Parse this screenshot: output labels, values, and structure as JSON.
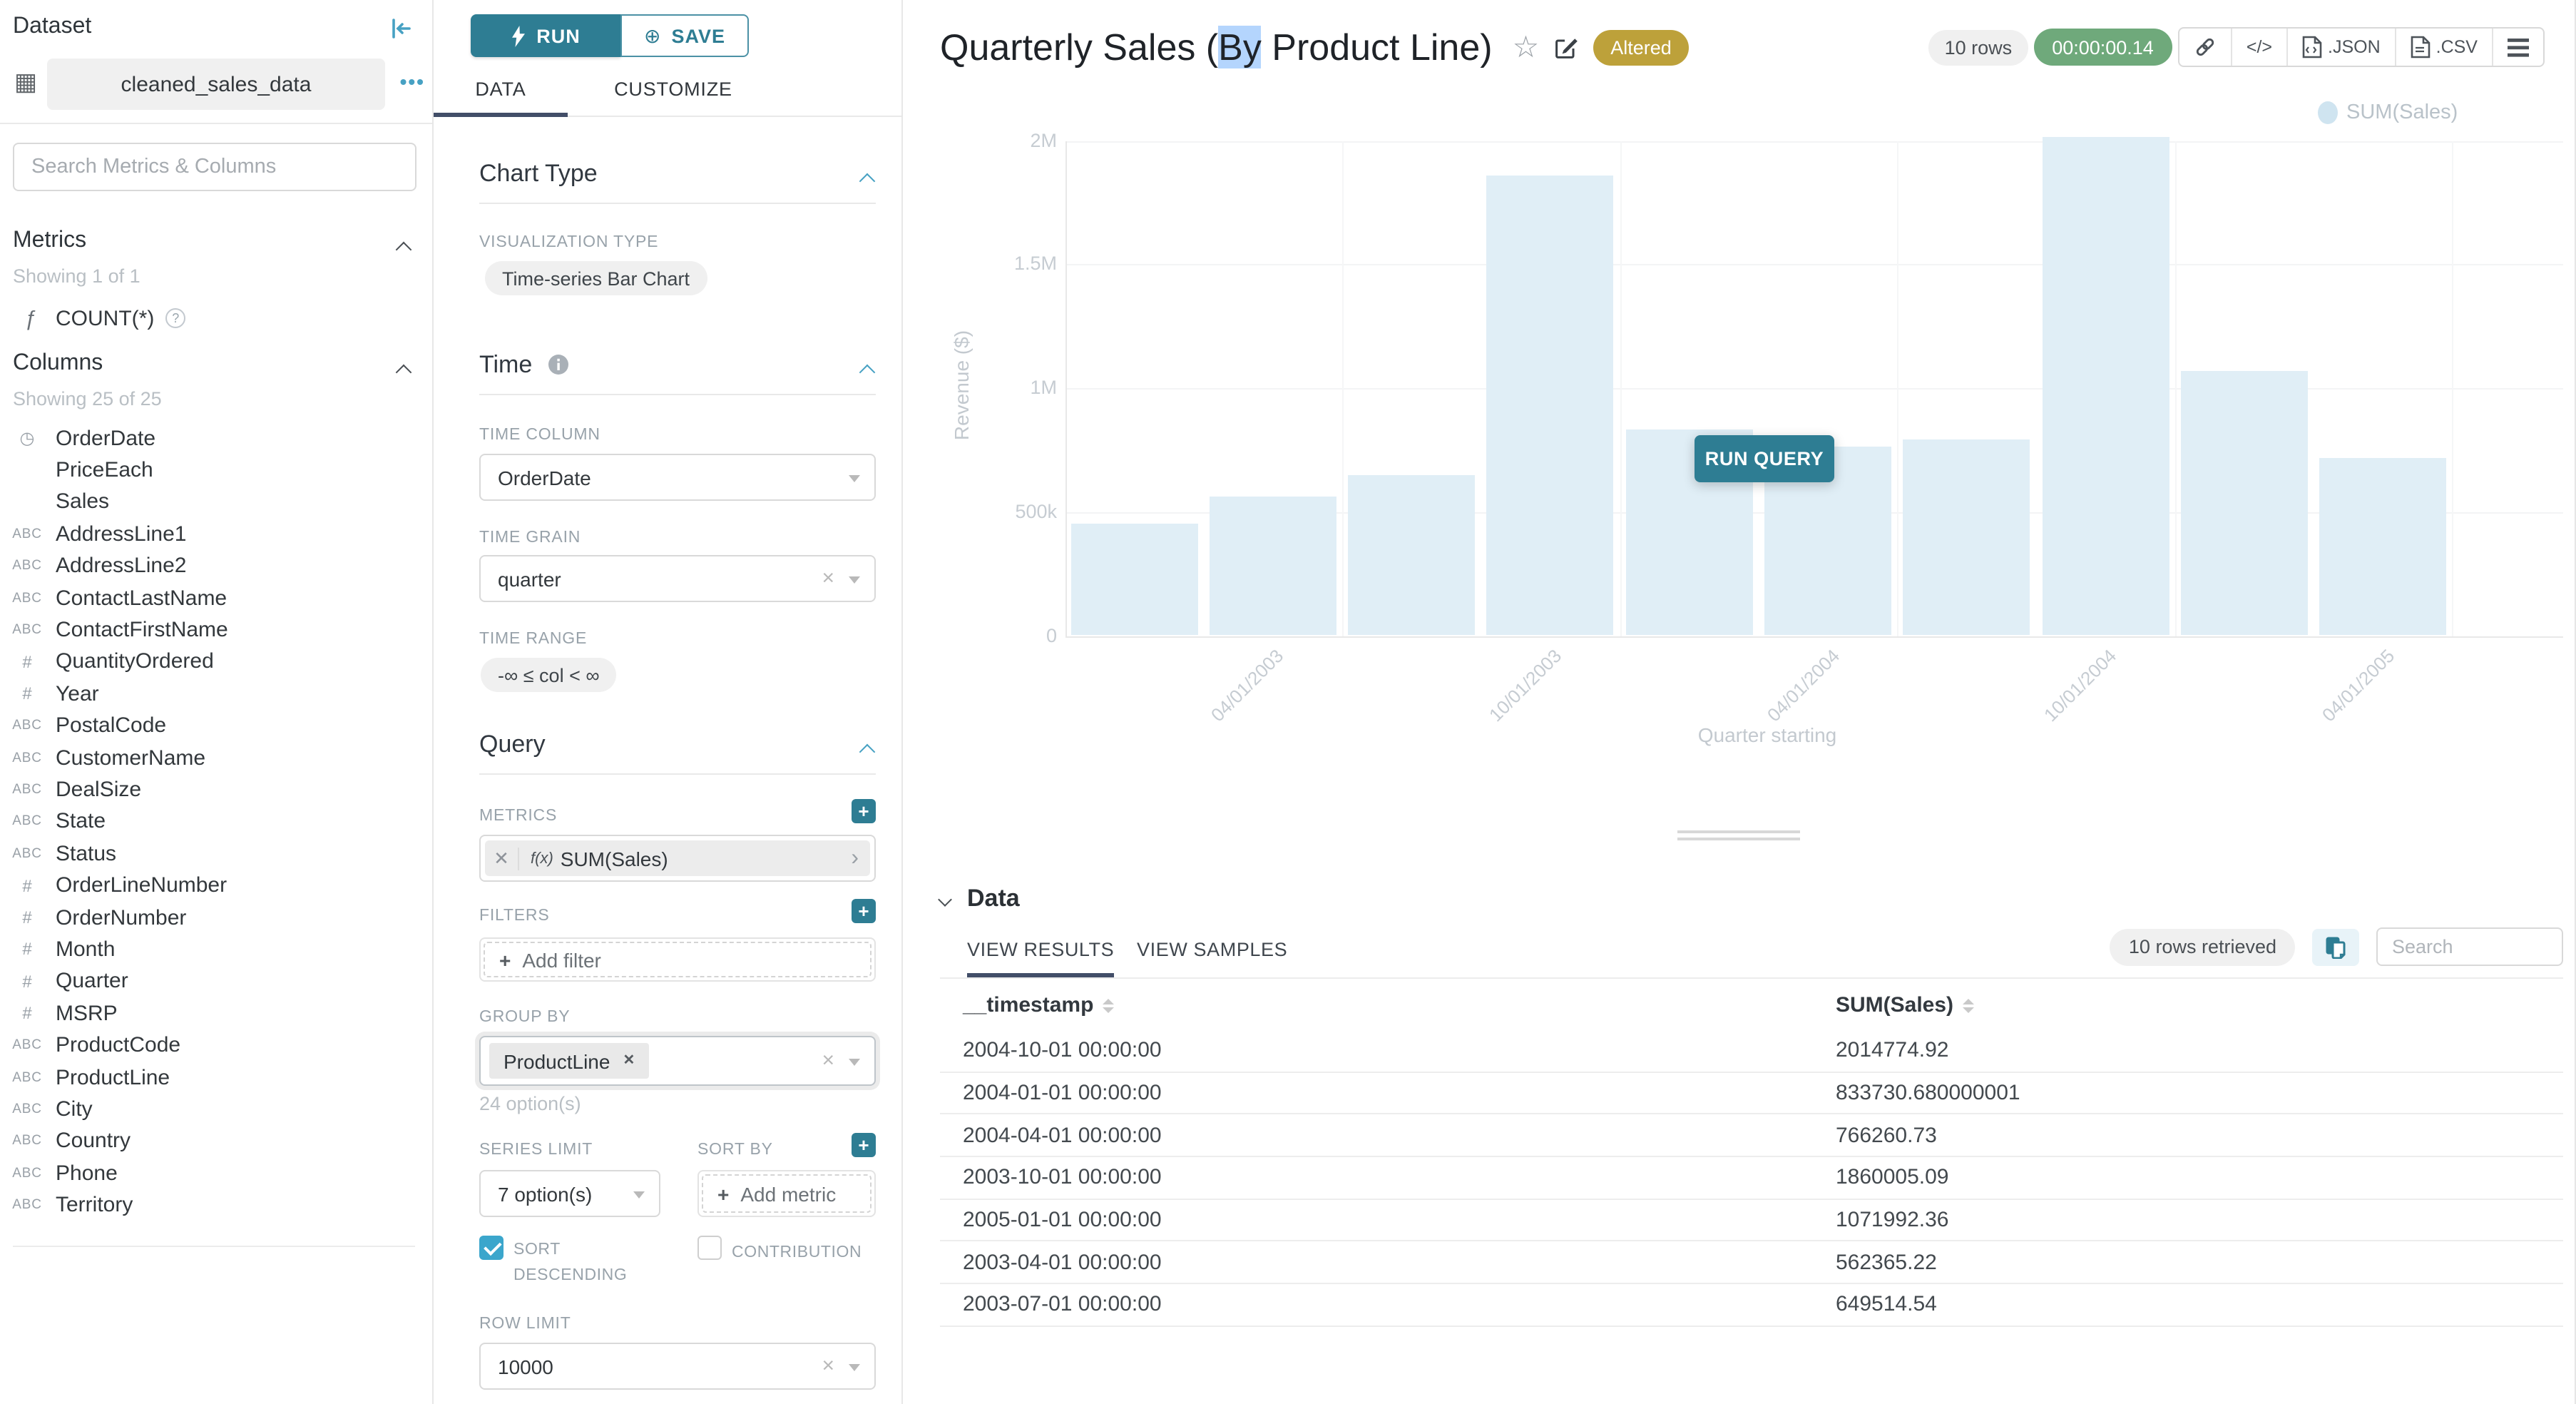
{
  "icons": {
    "plus": "+",
    "menu_dots": "•••",
    "grid": "▦",
    "star": "☆",
    "help": "?",
    "remove": "✕",
    "clear": "×",
    "caret": "›",
    "code": "</>"
  },
  "sidebar": {
    "title": "Dataset",
    "dataset_name": "cleaned_sales_data",
    "search_placeholder": "Search Metrics & Columns",
    "metrics": {
      "header": "Metrics",
      "showing": "Showing 1 of 1",
      "items": [
        {
          "icon": "ƒ",
          "name": "COUNT(*)"
        }
      ]
    },
    "columns": {
      "header": "Columns",
      "showing": "Showing 25 of 25",
      "items": [
        {
          "icon": "◷",
          "name": "OrderDate"
        },
        {
          "icon": "",
          "name": "PriceEach"
        },
        {
          "icon": "",
          "name": "Sales"
        },
        {
          "icon": "ABC",
          "name": "AddressLine1"
        },
        {
          "icon": "ABC",
          "name": "AddressLine2"
        },
        {
          "icon": "ABC",
          "name": "ContactLastName"
        },
        {
          "icon": "ABC",
          "name": "ContactFirstName"
        },
        {
          "icon": "#",
          "name": "QuantityOrdered"
        },
        {
          "icon": "#",
          "name": "Year"
        },
        {
          "icon": "ABC",
          "name": "PostalCode"
        },
        {
          "icon": "ABC",
          "name": "CustomerName"
        },
        {
          "icon": "ABC",
          "name": "DealSize"
        },
        {
          "icon": "ABC",
          "name": "State"
        },
        {
          "icon": "ABC",
          "name": "Status"
        },
        {
          "icon": "#",
          "name": "OrderLineNumber"
        },
        {
          "icon": "#",
          "name": "OrderNumber"
        },
        {
          "icon": "#",
          "name": "Month"
        },
        {
          "icon": "#",
          "name": "Quarter"
        },
        {
          "icon": "#",
          "name": "MSRP"
        },
        {
          "icon": "ABC",
          "name": "ProductCode"
        },
        {
          "icon": "ABC",
          "name": "ProductLine"
        },
        {
          "icon": "ABC",
          "name": "City"
        },
        {
          "icon": "ABC",
          "name": "Country"
        },
        {
          "icon": "ABC",
          "name": "Phone"
        },
        {
          "icon": "ABC",
          "name": "Territory"
        }
      ]
    }
  },
  "panel": {
    "run_label": "RUN",
    "save_label": "SAVE",
    "tabs": {
      "data": "DATA",
      "customize": "CUSTOMIZE"
    },
    "chart_type": {
      "header": "Chart Type",
      "viz_label": "VISUALIZATION TYPE",
      "viz_value": "Time-series Bar Chart"
    },
    "time": {
      "header": "Time",
      "column_label": "TIME COLUMN",
      "column_value": "OrderDate",
      "grain_label": "TIME GRAIN",
      "grain_value": "quarter",
      "range_label": "TIME RANGE",
      "range_value": "-∞ ≤ col < ∞"
    },
    "query": {
      "header": "Query",
      "metrics_label": "METRICS",
      "metric_fx": "f(x)",
      "metric_value": "SUM(Sales)",
      "filters_label": "FILTERS",
      "add_filter": "Add filter",
      "group_by_label": "GROUP BY",
      "group_by_chip": "ProductLine",
      "group_by_hint": "24 option(s)",
      "series_limit_label": "SERIES LIMIT",
      "series_limit_value": "7 option(s)",
      "sort_by_label": "SORT BY",
      "add_metric": "Add metric",
      "sort_descending_label": "SORT DESCENDING",
      "contribution_label": "CONTRIBUTION",
      "row_limit_label": "ROW LIMIT",
      "row_limit_value": "10000"
    }
  },
  "header": {
    "title_prefix": "Quarterly Sales (",
    "title_highlight": "By",
    "title_suffix": " Product Line)",
    "altered_badge": "Altered",
    "rows_pill": "10 rows",
    "timer": "00:00:00.14",
    "export_json": ".JSON",
    "export_csv": ".CSV"
  },
  "chart_overlay": {
    "run_query": "RUN QUERY"
  },
  "chart_data": {
    "type": "bar",
    "title": "Quarterly Sales (By Product Line)",
    "x": [
      "2003-01-01",
      "2003-04-01",
      "2003-07-01",
      "2003-10-01",
      "2004-01-01",
      "2004-04-01",
      "2004-07-01",
      "2004-10-01",
      "2005-01-01",
      "2005-04-01"
    ],
    "series": [
      {
        "name": "SUM(Sales)",
        "values": [
          450000,
          562365.22,
          649514.54,
          1860005.09,
          833730.68,
          766260.73,
          795000,
          2014774.92,
          1071992.36,
          720000
        ]
      }
    ],
    "estimated_indices": [
      0,
      6,
      9
    ],
    "x_tick_labels": [
      "04/01/2003",
      "10/01/2003",
      "04/01/2004",
      "10/01/2004",
      "04/01/2005"
    ],
    "x_tick_under_bars": [
      1,
      3,
      5,
      7,
      9
    ],
    "xlabel": "Quarter starting",
    "ylabel": "Revenue ($)",
    "ylim": [
      0,
      2000000
    ],
    "yticks": [
      {
        "v": 0,
        "label": "0"
      },
      {
        "v": 500000,
        "label": "500k"
      },
      {
        "v": 1000000,
        "label": "1M"
      },
      {
        "v": 1500000,
        "label": "1.5M"
      },
      {
        "v": 2000000,
        "label": "2M"
      }
    ],
    "legend": {
      "position": "top-right",
      "entries": [
        "SUM(Sales)"
      ]
    },
    "grid": true,
    "faded": true,
    "bar_color": "#e0eef6"
  },
  "data_panel": {
    "header": "Data",
    "tab_results": "VIEW RESULTS",
    "tab_samples": "VIEW SAMPLES",
    "rows_retrieved": "10 rows retrieved",
    "search_placeholder": "Search",
    "columns": [
      "__timestamp",
      "SUM(Sales)"
    ],
    "rows": [
      [
        "2004-10-01 00:00:00",
        "2014774.92"
      ],
      [
        "2004-01-01 00:00:00",
        "833730.680000001"
      ],
      [
        "2004-04-01 00:00:00",
        "766260.73"
      ],
      [
        "2003-10-01 00:00:00",
        "1860005.09"
      ],
      [
        "2005-01-01 00:00:00",
        "1071992.36"
      ],
      [
        "2003-04-01 00:00:00",
        "562365.22"
      ],
      [
        "2003-07-01 00:00:00",
        "649514.54"
      ]
    ]
  },
  "colors": {
    "primary_teal": "#2e7d93",
    "accent_teal": "#47a1c3",
    "tab_ink_navy": "#424e68",
    "altered_gold": "#bda13a",
    "timer_green": "#6fa97b",
    "bar_blue": "#e0eef6",
    "checkbox_blue": "#3ba6cc"
  }
}
